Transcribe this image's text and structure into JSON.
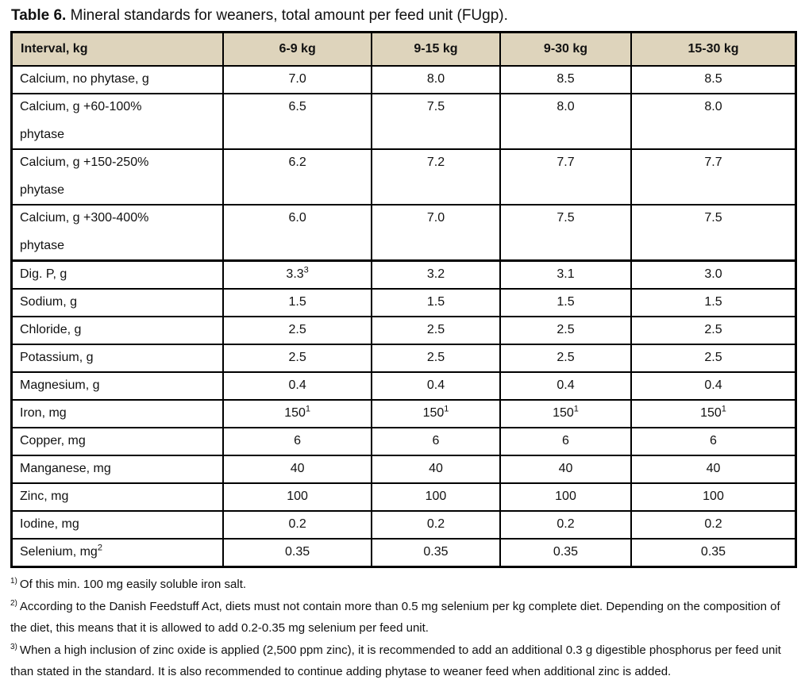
{
  "caption": {
    "label": "Table 6.",
    "text": "Mineral standards for weaners, total amount per feed unit (FUgp)."
  },
  "colors": {
    "header_background": "#ded4bc",
    "border": "#000000",
    "text": "#111111",
    "page_background": "#ffffff"
  },
  "table": {
    "columns": [
      "Interval, kg",
      "6-9 kg",
      "9-15 kg",
      "9-30 kg",
      "15-30 kg"
    ],
    "column_widths_pct": [
      27,
      18.9,
      16.4,
      16.7,
      21
    ],
    "rows": [
      {
        "label": "Calcium, no phytase, g",
        "values": [
          "7.0",
          "8.0",
          "8.5",
          "8.5"
        ]
      },
      {
        "lines": [
          "Calcium, g +60-100%",
          "phytase"
        ],
        "values": [
          "6.5",
          "7.5",
          "8.0",
          "8.0"
        ]
      },
      {
        "lines": [
          "Calcium, g +150-250%",
          "phytase"
        ],
        "values": [
          "6.2",
          "7.2",
          "7.7",
          "7.7"
        ]
      },
      {
        "lines": [
          "Calcium, g +300-400%",
          "phytase"
        ],
        "values": [
          "6.0",
          "7.0",
          "7.5",
          "7.5"
        ]
      },
      {
        "label": "Dig. P, g",
        "section_start": true,
        "values": [
          {
            "text": "3.3",
            "sup": "3"
          },
          "3.2",
          "3.1",
          "3.0"
        ]
      },
      {
        "label": "Sodium, g",
        "values": [
          "1.5",
          "1.5",
          "1.5",
          "1.5"
        ]
      },
      {
        "label": "Chloride, g",
        "values": [
          "2.5",
          "2.5",
          "2.5",
          "2.5"
        ]
      },
      {
        "label": "Potassium, g",
        "values": [
          "2.5",
          "2.5",
          "2.5",
          "2.5"
        ]
      },
      {
        "label": "Magnesium, g",
        "values": [
          "0.4",
          "0.4",
          "0.4",
          "0.4"
        ]
      },
      {
        "label": "Iron, mg",
        "values": [
          {
            "text": "150",
            "sup": "1"
          },
          {
            "text": "150",
            "sup": "1"
          },
          {
            "text": "150",
            "sup": "1"
          },
          {
            "text": "150",
            "sup": "1"
          }
        ]
      },
      {
        "label": "Copper, mg",
        "values": [
          "6",
          "6",
          "6",
          "6"
        ]
      },
      {
        "label": "Manganese, mg",
        "values": [
          "40",
          "40",
          "40",
          "40"
        ]
      },
      {
        "label": "Zinc, mg",
        "values": [
          "100",
          "100",
          "100",
          "100"
        ]
      },
      {
        "label": "Iodine, mg",
        "values": [
          "0.2",
          "0.2",
          "0.2",
          "0.2"
        ]
      },
      {
        "label": {
          "text": "Selenium, mg",
          "sup": "2"
        },
        "values": [
          "0.35",
          "0.35",
          "0.35",
          "0.35"
        ]
      }
    ]
  },
  "footnotes": [
    {
      "marker": "1)",
      "text": "Of this min. 100 mg easily soluble iron salt."
    },
    {
      "marker": "2)",
      "text": "According to the Danish Feedstuff Act, diets must not contain more than 0.5 mg selenium per kg complete diet. Depending on the composition of the diet, this means that it is allowed to add 0.2-0.35 mg selenium per feed unit."
    },
    {
      "marker": "3)",
      "text": "When a high inclusion of zinc oxide is applied (2,500 ppm zinc), it is recommended to add an additional 0.3 g digestible phosphorus per feed unit than stated in the standard. It is also recommended to continue adding phytase to weaner feed when additional zinc is added."
    }
  ]
}
